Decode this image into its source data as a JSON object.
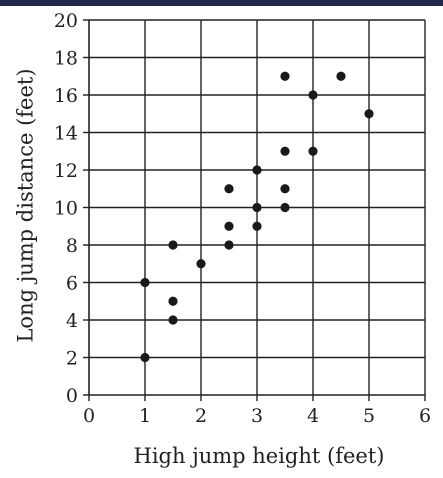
{
  "chart_data": {
    "type": "scatter",
    "title": "",
    "xlabel": "High jump height (feet)",
    "ylabel": "Long jump distance (feet)",
    "xlim": [
      0,
      6
    ],
    "ylim": [
      0,
      20
    ],
    "x_ticks": [
      0,
      1,
      2,
      3,
      4,
      5,
      6
    ],
    "y_ticks": [
      0,
      2,
      4,
      6,
      8,
      10,
      12,
      14,
      16,
      18,
      20
    ],
    "grid": true,
    "points": [
      {
        "x": 1,
        "y": 2
      },
      {
        "x": 1,
        "y": 6
      },
      {
        "x": 1.5,
        "y": 4
      },
      {
        "x": 1.5,
        "y": 5
      },
      {
        "x": 1.5,
        "y": 8
      },
      {
        "x": 2,
        "y": 7
      },
      {
        "x": 2.5,
        "y": 8
      },
      {
        "x": 2.5,
        "y": 9
      },
      {
        "x": 2.5,
        "y": 11
      },
      {
        "x": 3,
        "y": 9
      },
      {
        "x": 3,
        "y": 10
      },
      {
        "x": 3,
        "y": 12
      },
      {
        "x": 3.5,
        "y": 10
      },
      {
        "x": 3.5,
        "y": 11
      },
      {
        "x": 3.5,
        "y": 13
      },
      {
        "x": 3.5,
        "y": 17
      },
      {
        "x": 4,
        "y": 13
      },
      {
        "x": 4,
        "y": 16
      },
      {
        "x": 4.5,
        "y": 17
      },
      {
        "x": 5,
        "y": 15
      }
    ]
  },
  "colors": {
    "ink": "#222222",
    "point": "#1a1a1a",
    "top_band": "#1f2a4a"
  }
}
